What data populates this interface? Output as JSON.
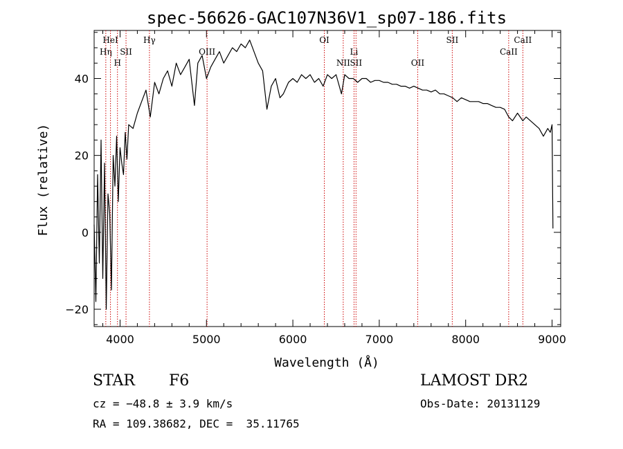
{
  "chart_data": {
    "type": "line",
    "title": "spec-56626-GAC107N36V1_sp07-186.fits",
    "xlabel": "Wavelength (Å)",
    "ylabel": "Flux (relative)",
    "xlim": [
      3700,
      9100
    ],
    "ylim": [
      -24.5,
      52.5
    ],
    "xticks": [
      4000,
      5000,
      6000,
      7000,
      8000,
      9000
    ],
    "yticks": [
      -20,
      0,
      20,
      40
    ],
    "grid": false,
    "line_color": "#000000",
    "marker_color": "#cc0000",
    "series": [
      {
        "x": [
          3700,
          3720,
          3740,
          3760,
          3780,
          3800,
          3820,
          3840,
          3860,
          3880,
          3900,
          3920,
          3940,
          3960,
          3980,
          4000,
          4020,
          4040,
          4060,
          4080,
          4100,
          4150,
          4200,
          4250,
          4300,
          4350,
          4400,
          4450,
          4500,
          4550,
          4600,
          4650,
          4700,
          4750,
          4800,
          4861,
          4900,
          4950,
          5000,
          5050,
          5100,
          5150,
          5200,
          5250,
          5300,
          5350,
          5400,
          5450,
          5500,
          5550,
          5600,
          5650,
          5700,
          5750,
          5800,
          5850,
          5890,
          5950,
          6000,
          6050,
          6100,
          6150,
          6200,
          6250,
          6300,
          6350,
          6400,
          6450,
          6500,
          6563,
          6600,
          6650,
          6700,
          6750,
          6800,
          6850,
          6900,
          6950,
          7000,
          7050,
          7100,
          7150,
          7200,
          7250,
          7300,
          7350,
          7400,
          7450,
          7500,
          7550,
          7600,
          7650,
          7700,
          7750,
          7800,
          7850,
          7900,
          7950,
          8000,
          8050,
          8100,
          8150,
          8200,
          8250,
          8300,
          8350,
          8400,
          8450,
          8498,
          8542,
          8600,
          8662,
          8700,
          8750,
          8800,
          8850,
          8900,
          8950,
          8980,
          9000,
          9010
        ],
        "y": [
          2,
          -18,
          15,
          -8,
          24,
          -12,
          18,
          -20,
          10,
          5,
          -15,
          20,
          12,
          25,
          8,
          22,
          18,
          15,
          26,
          19,
          28,
          27,
          31,
          34,
          37,
          30,
          39,
          36,
          40,
          42,
          38,
          44,
          41,
          43,
          45,
          33,
          44,
          46,
          40,
          43,
          45,
          47,
          44,
          46,
          48,
          47,
          49,
          48,
          50,
          47,
          44,
          42,
          32,
          38,
          40,
          35,
          36,
          39,
          40,
          39,
          41,
          40,
          41,
          39,
          40,
          38,
          41,
          40,
          41,
          36,
          41,
          40,
          40,
          39,
          40,
          40,
          39,
          39.5,
          39.5,
          39,
          39,
          38.5,
          38.5,
          38,
          38,
          37.5,
          38,
          37.5,
          37,
          37,
          36.5,
          37,
          36,
          36,
          35.5,
          35,
          34,
          35,
          34.5,
          34,
          34,
          34,
          33.5,
          33.5,
          33,
          32.5,
          32.5,
          32,
          30,
          29,
          31,
          29,
          30,
          29,
          28,
          27,
          25,
          27,
          26,
          28,
          1
        ]
      }
    ],
    "lines": [
      {
        "label": "Hη",
        "x": 3835,
        "row": 2
      },
      {
        "label": "HeI",
        "x": 3889,
        "row": 1
      },
      {
        "label": "H",
        "x": 3970,
        "row": 3
      },
      {
        "label": "SII",
        "x": 4069,
        "row": 2
      },
      {
        "label": "Hγ",
        "x": 4340,
        "row": 1
      },
      {
        "label": "OIII",
        "x": 5007,
        "row": 2
      },
      {
        "label": "OI",
        "x": 6364,
        "row": 1
      },
      {
        "label": "NII",
        "x": 6583,
        "row": 3
      },
      {
        "label": "Li",
        "x": 6708,
        "row": 2
      },
      {
        "label": "SII",
        "x": 6731,
        "row": 3
      },
      {
        "label": "OII",
        "x": 7445,
        "row": 3
      },
      {
        "label": "SII",
        "x": 7845,
        "row": 1
      },
      {
        "label": "CaII",
        "x": 8498,
        "row": 2
      },
      {
        "label": "CaII",
        "x": 8662,
        "row": 1
      }
    ]
  },
  "info": {
    "class": "STAR",
    "subclass": "F6",
    "cz": "cz = −48.8 ± 3.9 km/s",
    "radec": "RA = 109.38682, DEC =  35.11765",
    "survey": "LAMOST DR2",
    "obsdate": "Obs-Date: 20131129"
  }
}
